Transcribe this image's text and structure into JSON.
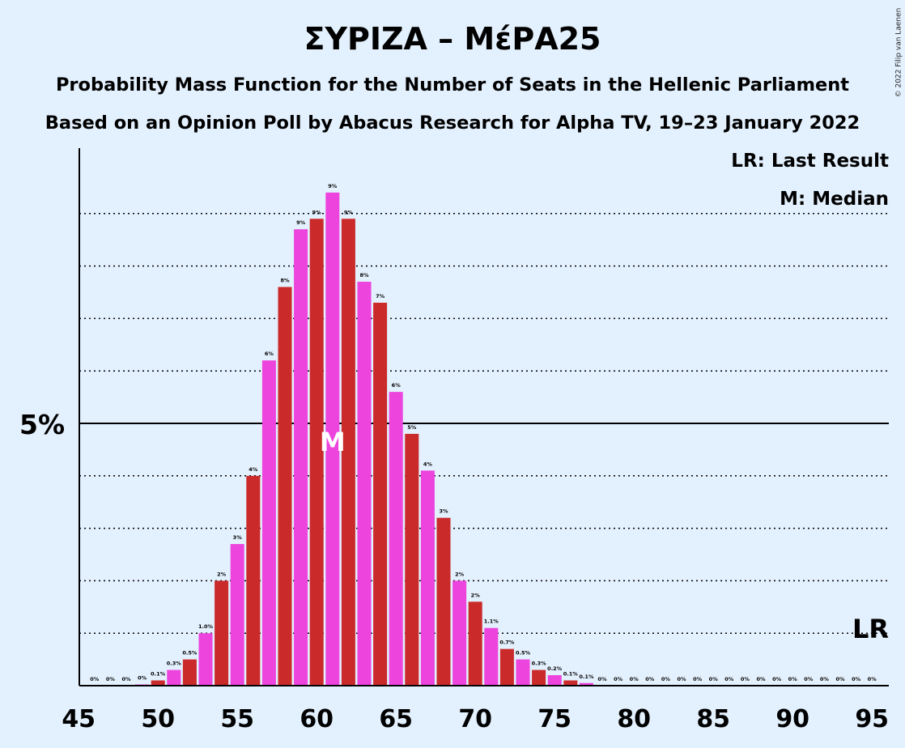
{
  "title": "ΣΥΡΙΖΑ – ΜέΡΑ25",
  "subtitle1": "Probability Mass Function for the Number of Seats in the Hellenic Parliament",
  "subtitle2": "Based on an Opinion Poll by Abacus Research for Alpha TV, 19–23 January 2022",
  "copyright": "© 2022 Filip van Laenen",
  "legend": {
    "lr": "LR: Last Result",
    "m": "M: Median"
  },
  "colors": {
    "red": "#cb2a2a",
    "pink": "#ec44dd",
    "background": "#e3f0fd"
  },
  "chart_data": {
    "type": "bar",
    "x": [
      46,
      47,
      48,
      49,
      50,
      51,
      52,
      53,
      54,
      55,
      56,
      57,
      58,
      59,
      60,
      61,
      62,
      63,
      64,
      65,
      66,
      67,
      68,
      69,
      70,
      71,
      72,
      73,
      74,
      75,
      76,
      77,
      78,
      79,
      80,
      81,
      82,
      83,
      84,
      85,
      86,
      87,
      88,
      89,
      90,
      91,
      92,
      93,
      94,
      95
    ],
    "values": [
      0,
      0,
      0,
      0.02,
      0.1,
      0.3,
      0.5,
      1.0,
      2.0,
      2.7,
      4.0,
      6.2,
      7.6,
      8.7,
      8.9,
      9.4,
      8.9,
      7.7,
      7.3,
      5.6,
      4.8,
      4.1,
      3.2,
      2.0,
      1.6,
      1.1,
      0.7,
      0.5,
      0.3,
      0.2,
      0.1,
      0.05,
      0,
      0,
      0,
      0,
      0,
      0,
      0,
      0,
      0,
      0,
      0,
      0,
      0,
      0,
      0,
      0,
      0,
      0
    ],
    "labels": [
      "0%",
      "0%",
      "0%",
      "0%",
      "0.1%",
      "0.3%",
      "0.5%",
      "1.0%",
      "2%",
      "3%",
      "4%",
      "6%",
      "8%",
      "9%",
      "9%",
      "9%",
      "9%",
      "8%",
      "7%",
      "6%",
      "5%",
      "4%",
      "3%",
      "2%",
      "2%",
      "1.1%",
      "0.7%",
      "0.5%",
      "0.3%",
      "0.2%",
      "0.1%",
      "0.1%",
      "0%",
      "0%",
      "0%",
      "0%",
      "0%",
      "0%",
      "0%",
      "0%",
      "0%",
      "0%",
      "0%",
      "0%",
      "0%",
      "0%",
      "0%",
      "0%",
      "0%",
      "0%"
    ],
    "xticks": [
      45,
      50,
      55,
      60,
      65,
      70,
      75,
      80,
      85,
      90,
      95
    ],
    "xlim": [
      45,
      95.5
    ],
    "ylim": [
      0,
      10.5
    ],
    "yticks": [
      {
        "value": 5,
        "label": "5%"
      }
    ],
    "gridlines": [
      1,
      2,
      3,
      4,
      6,
      7,
      8,
      9
    ],
    "median": {
      "x": 61,
      "label": "M"
    },
    "last_result": {
      "x": 95,
      "label": "LR"
    }
  }
}
